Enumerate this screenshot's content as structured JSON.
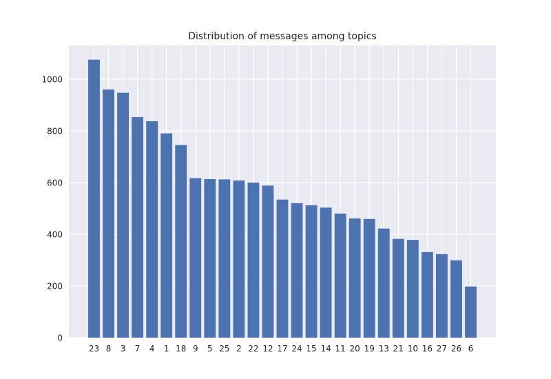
{
  "chart_data": {
    "type": "bar",
    "title": "Distribution of messages among topics",
    "xlabel": "",
    "ylabel": "",
    "categories": [
      "23",
      "8",
      "3",
      "7",
      "4",
      "1",
      "18",
      "9",
      "5",
      "25",
      "2",
      "22",
      "12",
      "17",
      "24",
      "15",
      "14",
      "11",
      "20",
      "19",
      "13",
      "21",
      "10",
      "16",
      "27",
      "26",
      "6"
    ],
    "values": [
      1075,
      960,
      947,
      853,
      837,
      790,
      745,
      617,
      613,
      612,
      608,
      600,
      588,
      534,
      520,
      512,
      503,
      480,
      461,
      459,
      422,
      382,
      378,
      331,
      323,
      299,
      198
    ],
    "ylim": [
      0,
      1130
    ],
    "yticks": [
      0,
      200,
      400,
      600,
      800,
      1000
    ],
    "grid": true,
    "color": "#4c72b0",
    "background": "#eaeaf2"
  }
}
